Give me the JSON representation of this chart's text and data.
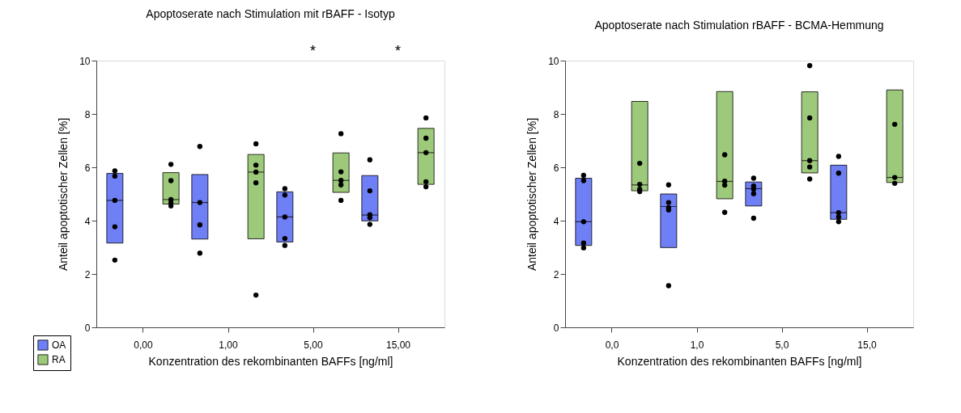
{
  "chart_data": [
    {
      "type": "box",
      "title": "Apoptoserate nach Stimulation mit rBAFF - Isotyp",
      "xlabel": "Konzentration des rekombinanten BAFFs [ng/ml]",
      "ylabel": "Anteil apoptotischer Zellen [%]",
      "categories": [
        "0,00",
        "1,00",
        "5,00",
        "15,00"
      ],
      "ylim": [
        0,
        10
      ],
      "yticks": [
        0,
        2,
        4,
        6,
        8,
        10
      ],
      "legend": "bottom left",
      "annotations": [
        "*",
        "*"
      ],
      "series": [
        {
          "name": "OA",
          "color": "#6f7ff5",
          "boxes": [
            {
              "low": 3.16,
              "q1": 3.16,
              "median": 4.76,
              "q3": 5.77,
              "high": 5.77,
              "outliers": [
                5.87,
                5.67,
                4.76,
                3.77,
                2.52
              ]
            },
            {
              "low": 3.31,
              "q1": 3.31,
              "median": 4.68,
              "q3": 5.73,
              "high": 5.73,
              "outliers": [
                6.78,
                4.68,
                3.84,
                2.78
              ]
            },
            {
              "low": 3.2,
              "q1": 3.2,
              "median": 4.14,
              "q3": 5.08,
              "high": 5.08,
              "outliers": [
                5.2,
                4.96,
                4.14,
                3.33,
                3.07
              ]
            },
            {
              "low": 3.99,
              "q1": 3.99,
              "median": 4.21,
              "q3": 5.69,
              "high": 5.69,
              "outliers": [
                6.28,
                5.12,
                4.22,
                4.11,
                3.86
              ]
            }
          ]
        },
        {
          "name": "RA",
          "color": "#9dc97a",
          "boxes": [
            {
              "low": 4.62,
              "q1": 4.62,
              "median": 4.79,
              "q3": 5.8,
              "high": 5.8,
              "outliers": [
                6.11,
                5.5,
                4.79,
                4.67,
                4.55
              ]
            },
            {
              "low": 3.32,
              "q1": 3.32,
              "median": 5.82,
              "q3": 6.48,
              "high": 6.48,
              "outliers": [
                6.88,
                6.08,
                5.82,
                5.42,
                1.21
              ]
            },
            {
              "low": 5.06,
              "q1": 5.06,
              "median": 5.51,
              "q3": 6.54,
              "high": 6.54,
              "outliers": [
                7.26,
                5.83,
                5.51,
                5.34,
                4.76
              ]
            },
            {
              "low": 5.36,
              "q1": 5.36,
              "median": 6.55,
              "q3": 7.46,
              "high": 7.46,
              "outliers": [
                7.85,
                7.09,
                6.55,
                5.46,
                5.27
              ]
            }
          ]
        }
      ]
    },
    {
      "type": "box",
      "title": "Apoptoserate nach Stimulation rBAFF - BCMA-Hemmung",
      "xlabel": "Konzentration des rekombinanten BAFFs [ng/ml]",
      "ylabel": "Anteil apoptotischer Zellen [%]",
      "categories": [
        "0,0",
        "1,0",
        "5,0",
        "15,0"
      ],
      "ylim": [
        0,
        10
      ],
      "yticks": [
        0,
        2,
        4,
        6,
        8,
        10
      ],
      "legend": "bottom left",
      "series": [
        {
          "name": "OA",
          "color": "#6f7ff5",
          "boxes": [
            {
              "low": 3.07,
              "q1": 3.07,
              "median": 3.96,
              "q3": 5.59,
              "high": 5.59,
              "outliers": [
                5.7,
                5.5,
                3.96,
                3.16,
                2.98
              ]
            },
            {
              "low": 2.99,
              "q1": 2.99,
              "median": 4.53,
              "q3": 5.0,
              "high": 5.0,
              "outliers": [
                5.34,
                4.68,
                4.49,
                4.4,
                1.56
              ]
            },
            {
              "low": 4.55,
              "q1": 4.55,
              "median": 5.2,
              "q3": 5.45,
              "high": 5.45,
              "outliers": [
                5.59,
                5.3,
                5.18,
                5.01,
                4.09
              ]
            },
            {
              "low": 4.05,
              "q1": 4.05,
              "median": 4.3,
              "q3": 6.08,
              "high": 6.08,
              "outliers": [
                6.41,
                5.78,
                4.3,
                4.14,
                3.96
              ]
            }
          ]
        },
        {
          "name": "RA",
          "color": "#9dc97a",
          "boxes": [
            {
              "low": 5.12,
              "q1": 5.12,
              "median": 5.34,
              "q3": 8.47,
              "high": 8.47,
              "outliers": [
                6.15,
                5.36,
                5.18,
                5.09
              ]
            },
            {
              "low": 4.82,
              "q1": 4.82,
              "median": 5.47,
              "q3": 8.84,
              "high": 8.84,
              "outliers": [
                6.47,
                5.48,
                5.33,
                4.31
              ]
            },
            {
              "low": 5.79,
              "q1": 5.79,
              "median": 6.25,
              "q3": 8.83,
              "high": 8.83,
              "outliers": [
                9.81,
                7.85,
                6.25,
                6.01,
                5.56
              ]
            },
            {
              "low": 5.43,
              "q1": 5.43,
              "median": 5.62,
              "q3": 8.9,
              "high": 8.9,
              "outliers": [
                7.61,
                5.62,
                5.4
              ]
            }
          ]
        }
      ]
    }
  ]
}
